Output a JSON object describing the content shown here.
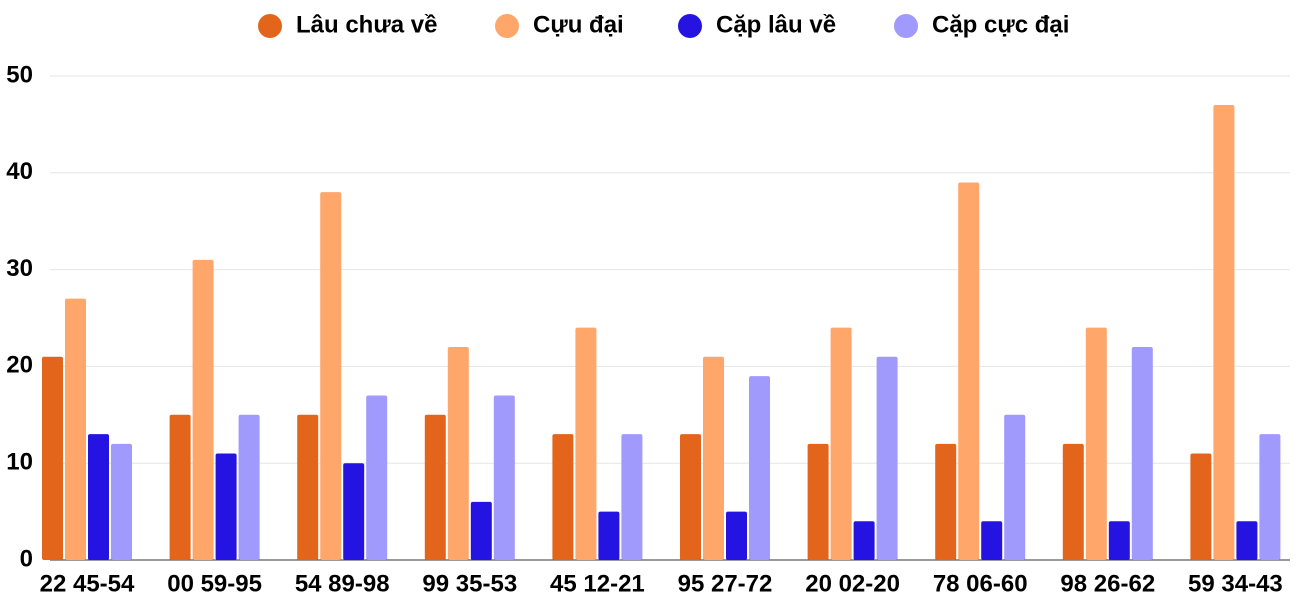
{
  "chart_data": {
    "type": "bar",
    "categories": [
      "22 45-54",
      "00 59-95",
      "54 89-98",
      "99 35-53",
      "45 12-21",
      "95 27-72",
      "20 02-20",
      "78 06-60",
      "98 26-62",
      "59 34-43"
    ],
    "series": [
      {
        "name": "Lâu chưa về",
        "color": "#e3651b",
        "values": [
          21,
          15,
          15,
          15,
          13,
          13,
          12,
          12,
          12,
          11
        ]
      },
      {
        "name": "Cựu đại",
        "color": "#ffa66b",
        "values": [
          27,
          31,
          38,
          22,
          24,
          21,
          24,
          39,
          24,
          47
        ]
      },
      {
        "name": "Cặp lâu về",
        "color": "#2514e1",
        "values": [
          13,
          11,
          10,
          6,
          5,
          5,
          4,
          4,
          4,
          4
        ]
      },
      {
        "name": "Cặp cực đại",
        "color": "#a09afc",
        "values": [
          12,
          15,
          17,
          17,
          13,
          19,
          21,
          15,
          22,
          13
        ]
      }
    ],
    "ylim": [
      0,
      50
    ],
    "yticks": [
      "0",
      "10",
      "20",
      "30",
      "40",
      "50"
    ],
    "grid": true,
    "legend_position": "top-center"
  }
}
